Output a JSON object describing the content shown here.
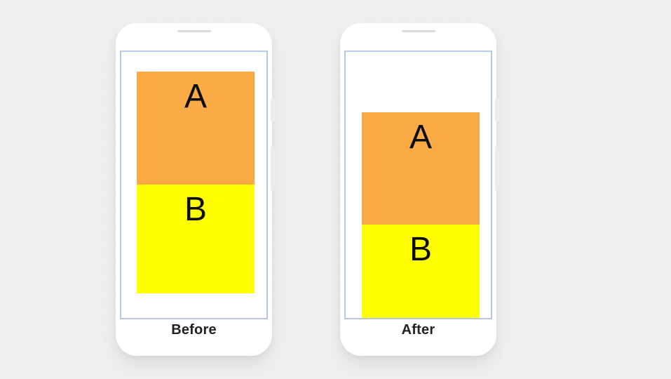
{
  "figure": {
    "background_color": "#f1f1f2",
    "screen_border_color": "#b5c8e8",
    "caption_color": "#202124",
    "panels": [
      {
        "label": "Before",
        "blocks": [
          {
            "name": "A",
            "color": "#faab45"
          },
          {
            "name": "B",
            "color": "#ffff00"
          }
        ]
      },
      {
        "label": "After",
        "blocks": [
          {
            "name": "A",
            "color": "#faab45"
          },
          {
            "name": "B",
            "color": "#ffff00"
          }
        ]
      }
    ]
  }
}
